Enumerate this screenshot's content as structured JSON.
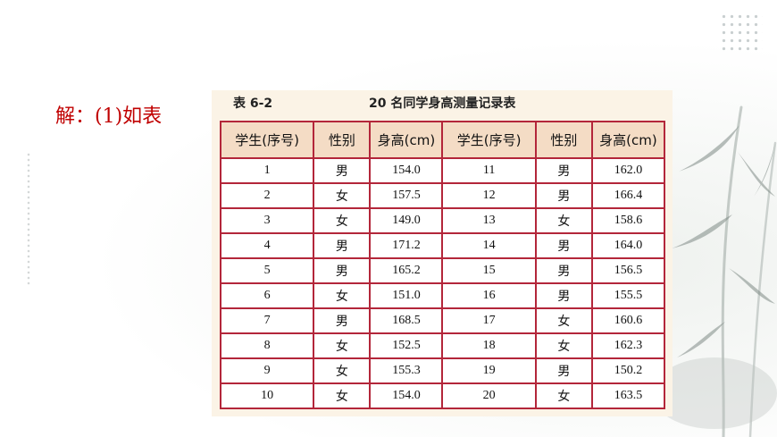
{
  "solution_text": "解：(1)如表",
  "table": {
    "number": "表 6-2",
    "title": "20 名同学身高测量记录表",
    "headers": [
      "学生(序号)",
      "性别",
      "身高(cm)",
      "学生(序号)",
      "性别",
      "身高(cm)"
    ],
    "rows": [
      [
        "1",
        "男",
        "154.0",
        "11",
        "男",
        "162.0"
      ],
      [
        "2",
        "女",
        "157.5",
        "12",
        "男",
        "166.4"
      ],
      [
        "3",
        "女",
        "149.0",
        "13",
        "女",
        "158.6"
      ],
      [
        "4",
        "男",
        "171.2",
        "14",
        "男",
        "164.0"
      ],
      [
        "5",
        "男",
        "165.2",
        "15",
        "男",
        "156.5"
      ],
      [
        "6",
        "女",
        "151.0",
        "16",
        "男",
        "155.5"
      ],
      [
        "7",
        "男",
        "168.5",
        "17",
        "女",
        "160.6"
      ],
      [
        "8",
        "女",
        "152.5",
        "18",
        "女",
        "162.3"
      ],
      [
        "9",
        "女",
        "155.3",
        "19",
        "男",
        "150.2"
      ],
      [
        "10",
        "女",
        "154.0",
        "20",
        "女",
        "163.5"
      ]
    ]
  },
  "colors": {
    "solution_text": "#c00000",
    "table_border": "#b3263a",
    "header_fill": "#f4dcc5",
    "panel_fill": "#fbf3e6"
  }
}
